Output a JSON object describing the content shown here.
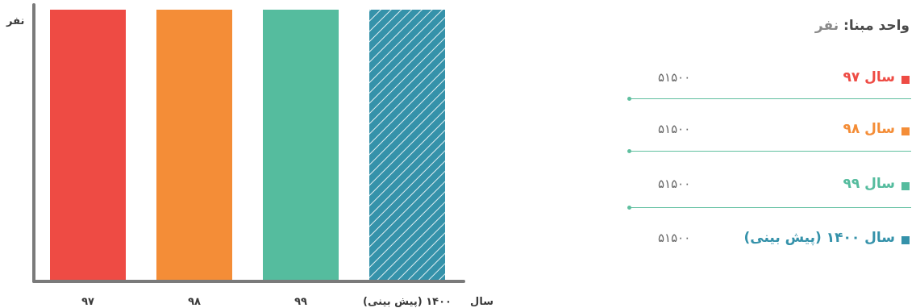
{
  "chart_data": {
    "type": "bar",
    "ylabel": "نفر",
    "xlabel": "سال",
    "categories": [
      "۹۷",
      "۹۸",
      "۹۹",
      "۱۴۰۰ (پیش بینی)"
    ],
    "values": [
      51500,
      51500,
      51500,
      51500
    ],
    "ylim": [
      0,
      51500
    ],
    "colors": [
      "#ee4b44",
      "#f48d37",
      "#55bc9e",
      "#3592aa"
    ],
    "hatched": [
      false,
      false,
      false,
      true
    ],
    "grid": false
  },
  "legend": {
    "unit_label": "واحد مبنا:",
    "unit_value": "نفر",
    "items": [
      {
        "label": "سال ۹۷",
        "value": "۵۱۵۰۰",
        "color": "#ee4b44"
      },
      {
        "label": "سال ۹۸",
        "value": "۵۱۵۰۰",
        "color": "#f48d37"
      },
      {
        "label": "سال ۹۹",
        "value": "۵۱۵۰۰",
        "color": "#55bc9e"
      },
      {
        "label": "سال ۱۴۰۰ (پیش بینی)",
        "value": "۵۱۵۰۰",
        "color": "#3592aa"
      }
    ]
  }
}
